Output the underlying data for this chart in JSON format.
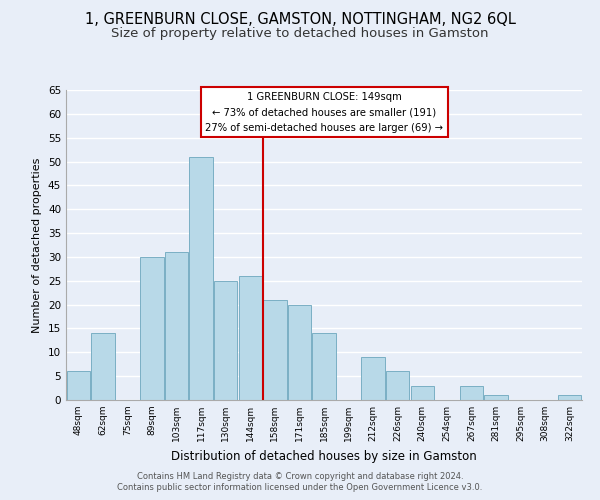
{
  "title": "1, GREENBURN CLOSE, GAMSTON, NOTTINGHAM, NG2 6QL",
  "subtitle": "Size of property relative to detached houses in Gamston",
  "xlabel": "Distribution of detached houses by size in Gamston",
  "ylabel": "Number of detached properties",
  "bar_labels": [
    "48sqm",
    "62sqm",
    "75sqm",
    "89sqm",
    "103sqm",
    "117sqm",
    "130sqm",
    "144sqm",
    "158sqm",
    "171sqm",
    "185sqm",
    "199sqm",
    "212sqm",
    "226sqm",
    "240sqm",
    "254sqm",
    "267sqm",
    "281sqm",
    "295sqm",
    "308sqm",
    "322sqm"
  ],
  "bar_values": [
    6,
    14,
    0,
    30,
    31,
    51,
    25,
    26,
    21,
    20,
    14,
    0,
    9,
    6,
    3,
    0,
    3,
    1,
    0,
    0,
    1
  ],
  "bar_color": "#b8d9e8",
  "bar_edge_color": "#7aafc4",
  "vline_x": 7.5,
  "vline_color": "#cc0000",
  "ylim": [
    0,
    65
  ],
  "yticks": [
    0,
    5,
    10,
    15,
    20,
    25,
    30,
    35,
    40,
    45,
    50,
    55,
    60,
    65
  ],
  "annotation_title": "1 GREENBURN CLOSE: 149sqm",
  "annotation_line1": "← 73% of detached houses are smaller (191)",
  "annotation_line2": "27% of semi-detached houses are larger (69) →",
  "annotation_box_color": "#ffffff",
  "annotation_box_edge": "#cc0000",
  "footer1": "Contains HM Land Registry data © Crown copyright and database right 2024.",
  "footer2": "Contains public sector information licensed under the Open Government Licence v3.0.",
  "bg_color": "#e8eef8",
  "grid_color": "#ffffff",
  "title_fontsize": 10.5,
  "subtitle_fontsize": 9.5
}
